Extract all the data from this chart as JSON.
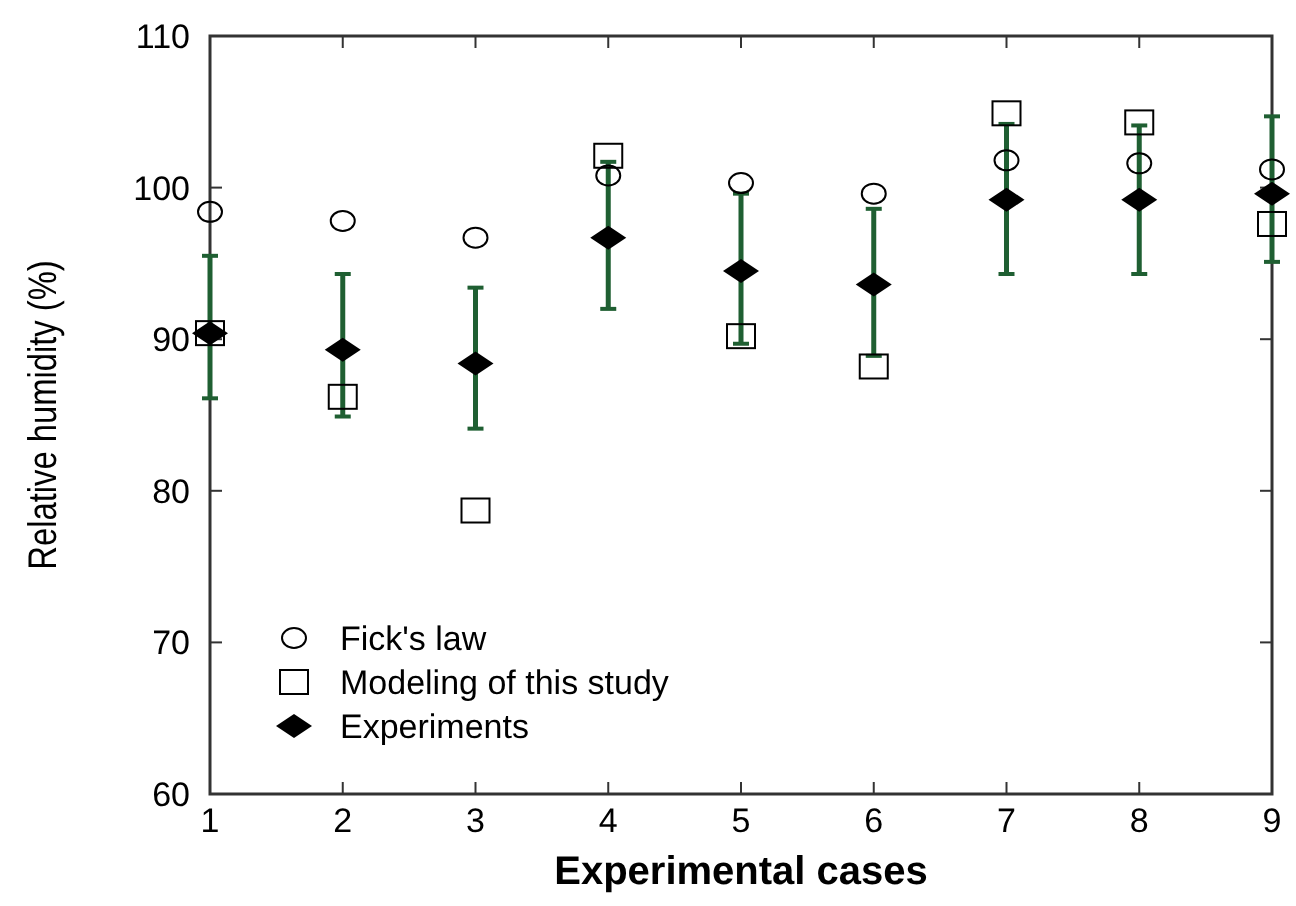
{
  "chart_data": {
    "type": "scatter",
    "xlabel": "Experimental cases",
    "ylabel": "Relative humidity (%)",
    "x": [
      1,
      2,
      3,
      4,
      5,
      6,
      7,
      8,
      9
    ],
    "xlim": [
      1,
      9
    ],
    "xticks": [
      1,
      2,
      3,
      4,
      5,
      6,
      7,
      8,
      9
    ],
    "ylim": [
      60,
      110
    ],
    "yticks": [
      60,
      70,
      80,
      90,
      100,
      110
    ],
    "grid": false,
    "legend": "bottom left",
    "series": [
      {
        "name": "Fick's law",
        "color": "#000000",
        "marker": "circle",
        "values": [
          98.4,
          97.8,
          96.7,
          100.8,
          100.3,
          99.6,
          101.8,
          101.6,
          101.2
        ]
      },
      {
        "name": "Modeling of this study",
        "color": "#000000",
        "marker": "square",
        "values": [
          90.4,
          86.2,
          78.7,
          102.1,
          90.2,
          88.2,
          104.9,
          104.3,
          97.6
        ]
      },
      {
        "name": "Experiments",
        "color": "#000000",
        "marker": "diamond",
        "values": [
          90.4,
          89.3,
          88.4,
          96.7,
          94.5,
          93.6,
          99.2,
          99.2,
          99.6
        ],
        "errors": [
          [
            86.1,
            95.5
          ],
          [
            84.9,
            94.3
          ],
          [
            84.1,
            93.4
          ],
          [
            92.0,
            101.7
          ],
          [
            89.7,
            99.6
          ],
          [
            88.9,
            98.6
          ],
          [
            94.3,
            104.2
          ],
          [
            94.3,
            104.1
          ],
          [
            95.1,
            104.7
          ]
        ]
      }
    ]
  }
}
